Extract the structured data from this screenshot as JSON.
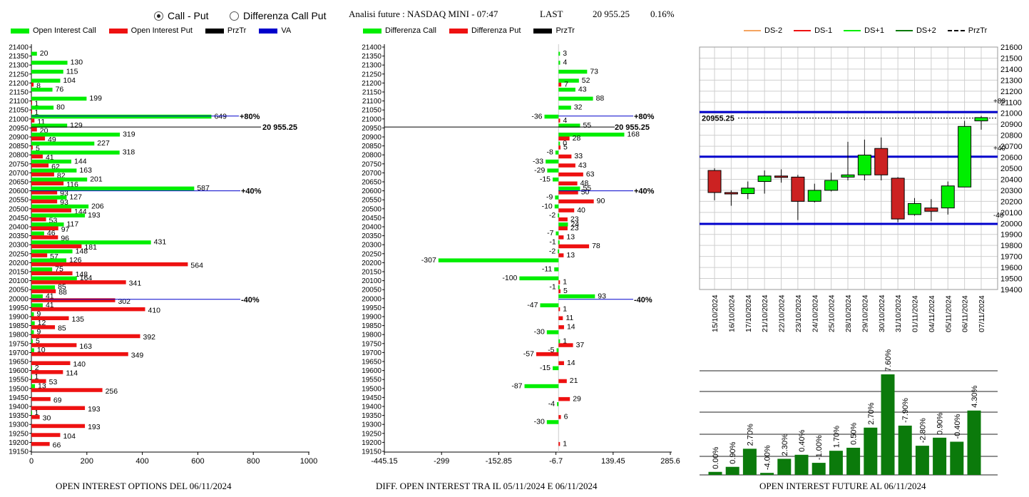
{
  "header": {
    "radio_call_put": "Call - Put",
    "radio_diff": "Differenza Call Put",
    "title": "Analisi future : NASDAQ MINI - 07:47",
    "last_label": "LAST",
    "last_value": "20 955.25",
    "last_change": "0.16%"
  },
  "legend1": [
    "Open Interest Call",
    "Open Interest Put",
    "PrzTr",
    "VA"
  ],
  "legend2": [
    "Differenza Call",
    "Differenza Put",
    "PrzTr"
  ],
  "legend3": [
    "DS-2",
    "DS-1",
    "DS+1",
    "DS+2",
    "PrzTr"
  ],
  "footers": {
    "oi": "OPEN INTEREST OPTIONS DEL 06/11/2024",
    "diff": "DIFF. OPEN INTEREST TRA IL 05/11/2024 E 06/11/2024",
    "fut": "OPEN INTEREST FUTURE AL 06/11/2024"
  },
  "colors": {
    "call": "#00ee00",
    "put": "#ee1111",
    "va": "#0000cc",
    "prztr": "#000000",
    "dark_green": "#0b7a0b"
  },
  "chart_data": [
    {
      "type": "bar",
      "orientation": "horizontal",
      "strikes": [
        21400,
        21350,
        21300,
        21250,
        21200,
        21150,
        21100,
        21050,
        21000,
        20950,
        20900,
        20850,
        20800,
        20750,
        20700,
        20650,
        20600,
        20550,
        20500,
        20450,
        20400,
        20350,
        20300,
        20250,
        20200,
        20150,
        20100,
        20050,
        20000,
        19950,
        19900,
        19850,
        19800,
        19750,
        19700,
        19650,
        19600,
        19550,
        19500,
        19450,
        19400,
        19350,
        19300,
        19250,
        19200,
        19150
      ],
      "series": [
        {
          "name": "Open Interest Call",
          "values": [
            null,
            20,
            130,
            115,
            104,
            76,
            199,
            80,
            649,
            129,
            319,
            227,
            318,
            144,
            163,
            201,
            587,
            127,
            206,
            193,
            117,
            46,
            431,
            148,
            126,
            75,
            164,
            85,
            41,
            41,
            9,
            12,
            9,
            5,
            10,
            null,
            2,
            1,
            13,
            null,
            null,
            1,
            null,
            null,
            null,
            null
          ]
        },
        {
          "name": "Open Interest Put",
          "values": [
            null,
            null,
            null,
            null,
            8,
            null,
            1,
            1,
            11,
            20,
            49,
            5,
            41,
            62,
            82,
            116,
            93,
            93,
            144,
            53,
            97,
            96,
            181,
            57,
            564,
            148,
            341,
            88,
            302,
            410,
            135,
            85,
            392,
            163,
            349,
            140,
            114,
            53,
            256,
            69,
            193,
            30,
            193,
            104,
            66,
            null
          ]
        }
      ],
      "annotations": [
        {
          "label": "+80%",
          "strike": 21000
        },
        {
          "label": "20 955.25",
          "strike": 20955.25
        },
        {
          "label": "+40%",
          "strike": 20600
        },
        {
          "label": "-40%",
          "strike": 20000
        }
      ],
      "x_ticks": [
        0,
        200,
        400,
        600,
        800,
        1000
      ],
      "xlim": [
        0,
        1000
      ],
      "title": "OPEN INTEREST OPTIONS DEL 06/11/2024"
    },
    {
      "type": "bar",
      "orientation": "horizontal",
      "strikes": [
        21400,
        21350,
        21300,
        21250,
        21200,
        21150,
        21100,
        21050,
        21000,
        20950,
        20900,
        20850,
        20800,
        20750,
        20700,
        20650,
        20600,
        20550,
        20500,
        20450,
        20400,
        20350,
        20300,
        20250,
        20200,
        20150,
        20100,
        20050,
        20000,
        19950,
        19900,
        19850,
        19800,
        19750,
        19700,
        19650,
        19600,
        19550,
        19500,
        19450,
        19400,
        19350,
        19300,
        19250,
        19200,
        19150
      ],
      "series": [
        {
          "name": "Differenza Call",
          "values": [
            null,
            3,
            4,
            73,
            52,
            43,
            88,
            32,
            -36,
            55,
            168,
            0,
            -8,
            -33,
            -29,
            -15,
            55,
            -9,
            -10,
            -2,
            24,
            -7,
            -1,
            -2,
            -307,
            -11,
            -100,
            -1,
            93,
            -47,
            null,
            null,
            -30,
            1,
            -5,
            null,
            -15,
            null,
            -87,
            null,
            -4,
            null,
            -30,
            null,
            null,
            null
          ]
        },
        {
          "name": "Differenza Put",
          "values": [
            null,
            null,
            null,
            null,
            7,
            null,
            null,
            null,
            4,
            null,
            28,
            5,
            33,
            43,
            63,
            48,
            50,
            90,
            40,
            23,
            23,
            13,
            78,
            13,
            null,
            null,
            1,
            5,
            null,
            1,
            11,
            14,
            null,
            37,
            -57,
            14,
            null,
            21,
            null,
            29,
            null,
            6,
            null,
            null,
            1,
            null
          ]
        }
      ],
      "annotations": [
        {
          "label": "+80%",
          "strike": 21000
        },
        {
          "label": "20 955.25",
          "strike": 20955.25
        },
        {
          "label": "+40%",
          "strike": 20600
        },
        {
          "label": "-40%",
          "strike": 20000
        }
      ],
      "x_ticks": [
        "-445.15",
        "-299",
        "-152.85",
        "-6.7",
        "139.45",
        "285.6"
      ],
      "xlim": [
        -445.15,
        285.6
      ],
      "title": "DIFF. OPEN INTEREST TRA IL 05/11/2024 E 06/11/2024"
    },
    {
      "type": "candlestick",
      "dates": [
        "15/10/2024",
        "16/10/2024",
        "17/10/2024",
        "21/10/2024",
        "22/10/2024",
        "23/10/2024",
        "24/10/2024",
        "25/10/2024",
        "28/10/2024",
        "29/10/2024",
        "30/10/2024",
        "31/10/2024",
        "01/11/2024",
        "04/11/2024",
        "05/11/2024",
        "06/11/2024",
        "07/11/2024"
      ],
      "ohlc": [
        [
          20480,
          20500,
          20210,
          20280
        ],
        [
          20280,
          20300,
          20160,
          20270
        ],
        [
          20270,
          20380,
          20220,
          20320
        ],
        [
          20380,
          20480,
          20270,
          20430
        ],
        [
          20430,
          20490,
          20370,
          20420
        ],
        [
          20420,
          20440,
          20030,
          20200
        ],
        [
          20200,
          20360,
          20190,
          20300
        ],
        [
          20300,
          20460,
          20290,
          20390
        ],
        [
          20420,
          20740,
          20390,
          20440
        ],
        [
          20440,
          20760,
          20390,
          20620
        ],
        [
          20680,
          20780,
          20390,
          20440
        ],
        [
          20410,
          20420,
          20010,
          20040
        ],
        [
          20080,
          20230,
          20070,
          20180
        ],
        [
          20140,
          20220,
          20020,
          20110
        ],
        [
          20140,
          20380,
          20080,
          20340
        ],
        [
          20330,
          20930,
          20330,
          20880
        ],
        [
          20930,
          20975,
          20850,
          20960
        ]
      ],
      "levels": [
        {
          "label": "+80",
          "value": 21010
        },
        {
          "label": "+40",
          "value": 20605
        },
        {
          "label": "-40",
          "value": 19995
        }
      ],
      "last_label": "20955.25",
      "last_value": 20955.25,
      "y_ticks": [
        21600,
        21500,
        21400,
        21300,
        21200,
        21100,
        21000,
        20900,
        20800,
        20700,
        20600,
        20500,
        20400,
        20300,
        20200,
        20100,
        20000,
        19900,
        19800,
        19700,
        19600,
        19500,
        19400
      ],
      "ylim": [
        19400,
        21600
      ]
    },
    {
      "type": "bar",
      "title": "OPEN INTEREST FUTURE AL 06/11/2024",
      "values": [
        0.0,
        0.9,
        2.7,
        -4.0,
        2.3,
        0.4,
        -1.0,
        1.7,
        0.5,
        2.7,
        7.6,
        -7.9,
        -2.8,
        0.9,
        -0.4,
        4.3
      ],
      "heights": [
        3,
        8,
        26,
        2,
        16,
        20,
        12,
        24,
        27,
        47,
        100,
        49,
        29,
        37,
        33,
        64
      ],
      "labels": [
        "0.00%",
        "0.90%",
        "2.70%",
        "-4.00%",
        "2.30%",
        "0.40%",
        "-1.00%",
        "1.70%",
        "0.50%",
        "2.70%",
        "7.60%",
        "-7.90%",
        "-2.80%",
        "0.90%",
        "-0.40%",
        "4.30%"
      ]
    }
  ]
}
